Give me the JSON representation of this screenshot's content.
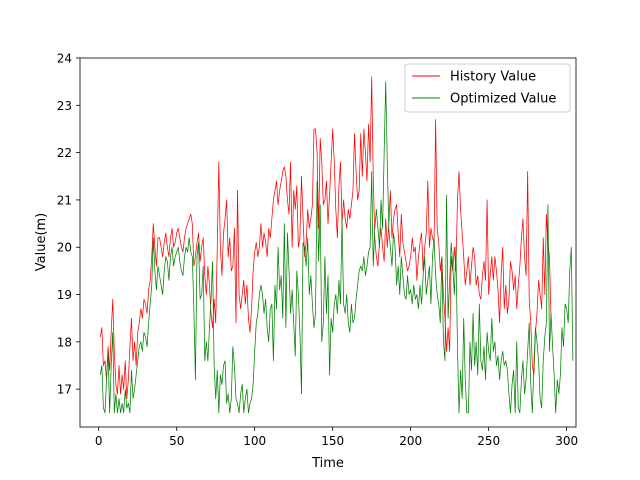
{
  "chart_data": {
    "type": "line",
    "xlabel": "Time",
    "ylabel": "Value(m)",
    "xlim": [
      -12,
      306
    ],
    "ylim": [
      16.2,
      24
    ],
    "xticks": [
      0,
      50,
      100,
      150,
      200,
      250,
      300
    ],
    "yticks": [
      17,
      18,
      19,
      20,
      21,
      22,
      23,
      24
    ],
    "grid": false,
    "legend_position": "top-right",
    "series": [
      {
        "name": "History Value",
        "color": "#ff0000",
        "values": [
          18.1,
          18.3,
          17.5,
          17.6,
          17.2,
          17.9,
          17.4,
          18.2,
          18.9,
          17.8,
          17.1,
          16.9,
          17.5,
          16.9,
          17.3,
          17.0,
          17.6,
          16.8,
          17.2,
          17.9,
          18.5,
          17.6,
          18.0,
          17.5,
          18.2,
          18.4,
          18.7,
          18.5,
          18.9,
          18.8,
          18.6,
          19.1,
          19.3,
          19.8,
          20.5,
          20.0,
          19.6,
          20.2,
          20.2,
          20.0,
          19.8,
          20.1,
          20.3,
          20.0,
          19.8,
          20.2,
          20.4,
          20.0,
          20.1,
          20.3,
          20.4,
          20.2,
          20.0,
          19.9,
          20.2,
          20.4,
          20.5,
          20.6,
          20.7,
          20.5,
          19.6,
          19.8,
          20.1,
          20.3,
          19.7,
          20.0,
          20.2,
          19.4,
          19.0,
          19.6,
          19.2,
          18.6,
          18.3,
          18.9,
          18.4,
          20.0,
          21.8,
          20.0,
          19.4,
          20.3,
          20.6,
          21.0,
          19.8,
          20.2,
          19.5,
          19.6,
          20.4,
          18.4,
          21.2,
          19.0,
          18.7,
          19.0,
          19.3,
          18.8,
          19.2,
          18.5,
          18.2,
          18.7,
          19.5,
          19.9,
          20.1,
          19.8,
          20.0,
          20.5,
          20.0,
          20.3,
          20.1,
          19.8,
          20.4,
          20.2,
          20.6,
          21.0,
          21.2,
          21.4,
          20.9,
          21.2,
          21.4,
          21.6,
          21.7,
          21.5,
          21.0,
          20.7,
          21.8,
          20.0,
          21.2,
          20.8,
          21.3,
          20.0,
          20.2,
          21.5,
          20.6,
          19.8,
          20.1,
          20.8,
          20.4,
          20.6,
          20.9,
          22.5,
          22.5,
          22.0,
          20.4,
          22.3,
          21.8,
          20.9,
          21.0,
          21.4,
          20.5,
          21.1,
          21.8,
          22.5,
          21.8,
          20.8,
          20.2,
          21.3,
          21.8,
          20.5,
          21.0,
          20.6,
          20.4,
          20.8,
          20.6,
          20.9,
          21.2,
          22.4,
          21.6,
          21.0,
          21.2,
          22.4,
          21.5,
          22.5,
          22.0,
          21.4,
          22.6,
          21.8,
          23.6,
          21.5,
          20.2,
          19.8,
          19.6,
          20.1,
          20.4,
          20.0,
          19.7,
          20.6,
          20.0,
          20.5,
          21.2,
          20.2,
          20.6,
          20.8,
          20.9,
          20.3,
          19.8,
          20.7,
          20.1,
          19.9,
          19.7,
          19.5,
          19.6,
          19.8,
          20.2,
          19.9,
          20.0,
          19.3,
          19.8,
          20.1,
          20.3,
          19.5,
          20.0,
          20.3,
          21.4,
          20.0,
          20.4,
          20.2,
          20.1,
          22.7,
          20.4,
          20.1,
          19.5,
          19.8,
          19.0,
          18.5,
          17.8,
          18.3,
          17.8,
          19.8,
          19.5,
          20.0,
          19.5,
          21.0,
          21.6,
          20.8,
          20.3,
          19.8,
          19.2,
          19.5,
          19.8,
          19.2,
          19.6,
          20.0,
          19.8,
          19.2,
          19.4,
          19.0,
          18.9,
          19.4,
          19.7,
          19.3,
          21.0,
          19.0,
          19.4,
          19.8,
          19.3,
          19.8,
          19.5,
          19.1,
          18.4,
          19.4,
          20.0,
          18.7,
          19.2,
          18.6,
          18.9,
          19.7,
          19.5,
          19.1,
          19.4,
          18.7,
          19.2,
          19.6,
          20.2,
          20.6,
          19.8,
          19.4,
          21.6,
          18.9,
          18.4,
          17.5,
          17.3,
          18.2,
          18.6,
          19.3,
          19.0,
          18.7,
          20.2,
          19.0,
          20.7,
          20.1,
          19.8,
          18.5
        ]
      },
      {
        "name": "Optimized Value",
        "color": "#008000",
        "values": [
          17.3,
          17.5,
          16.6,
          16.5,
          17.2,
          17.8,
          16.5,
          17.5,
          18.2,
          16.5,
          16.9,
          16.5,
          16.8,
          16.5,
          16.7,
          16.5,
          17.0,
          16.6,
          16.7,
          16.5,
          17.4,
          16.8,
          17.0,
          17.3,
          17.6,
          17.9,
          18.0,
          17.8,
          18.2,
          18.1,
          17.9,
          18.4,
          18.8,
          19.2,
          20.2,
          19.5,
          19.1,
          19.6,
          19.4,
          19.2,
          19.0,
          19.5,
          19.8,
          19.7,
          19.3,
          19.8,
          20.0,
          19.6,
          19.8,
          19.9,
          20.0,
          19.7,
          19.5,
          19.4,
          19.8,
          20.0,
          19.9,
          20.2,
          19.9,
          19.8,
          18.7,
          17.2,
          19.8,
          20.1,
          18.9,
          19.0,
          19.6,
          17.6,
          18.0,
          17.6,
          18.3,
          18.9,
          19.7,
          17.5,
          16.8,
          17.4,
          16.5,
          17.3,
          17.1,
          17.5,
          17.6,
          16.7,
          16.9,
          16.5,
          16.8,
          17.9,
          17.5,
          16.8,
          16.7,
          16.5,
          16.9,
          17.1,
          16.5,
          16.8,
          17.0,
          16.5,
          16.7,
          16.8,
          17.1,
          17.8,
          18.4,
          18.6,
          19.0,
          19.2,
          19.0,
          18.6,
          18.9,
          18.3,
          18.0,
          18.7,
          18.8,
          17.6,
          19.2,
          18.7,
          20.0,
          19.1,
          19.4,
          18.5,
          20.5,
          18.3,
          20.3,
          19.5,
          18.6,
          19.1,
          18.4,
          17.7,
          19.5,
          19.0,
          18.2,
          16.9,
          20.1,
          20.0,
          19.6,
          20.2,
          19.0,
          19.4,
          18.8,
          18.3,
          18.6,
          21.4,
          19.7,
          20.9,
          18.0,
          18.4,
          19.8,
          18.6,
          19.4,
          17.3,
          18.5,
          18.2,
          18.8,
          19.0,
          18.6,
          19.3,
          18.8,
          20.6,
          18.8,
          18.6,
          19.0,
          18.4,
          18.2,
          18.8,
          18.4,
          18.5,
          18.9,
          19.2,
          19.5,
          19.6,
          19.5,
          19.8,
          19.4,
          19.6,
          19.9,
          20.0,
          21.6,
          19.6,
          20.4,
          20.8,
          20.4,
          20.0,
          21.0,
          20.4,
          22.0,
          23.5,
          21.8,
          20.4,
          20.0,
          19.6,
          20.3,
          20.0,
          19.2,
          19.6,
          19.0,
          19.8,
          19.4,
          19.0,
          18.9,
          19.4,
          19.0,
          19.1,
          18.8,
          19.2,
          18.9,
          19.0,
          18.7,
          19.2,
          18.8,
          19.4,
          19.8,
          19.0,
          19.3,
          19.6,
          18.8,
          19.8,
          20.2,
          19.4,
          19.0,
          18.8,
          18.4,
          19.8,
          18.0,
          17.6,
          21.1,
          18.5,
          19.3,
          20.1,
          19.6,
          19.0,
          20.0,
          17.9,
          16.5,
          17.4,
          16.8,
          18.5,
          17.2,
          16.5,
          16.5,
          18.0,
          17.4,
          18.6,
          17.5,
          18.0,
          17.3,
          18.8,
          17.6,
          17.4,
          17.9,
          17.2,
          18.2,
          17.8,
          17.6,
          18.5,
          17.8,
          18.0,
          17.5,
          17.7,
          17.2,
          17.6,
          17.8,
          17.5,
          17.6,
          17.4,
          16.9,
          16.5,
          17.1,
          17.4,
          16.5,
          18.0,
          16.6,
          16.5,
          17.2,
          17.6,
          16.9,
          17.2,
          17.8,
          18.4,
          17.1,
          16.5,
          17.5,
          18.3,
          18.0,
          17.6,
          16.8,
          16.6,
          17.6,
          18.1,
          18.4,
          20.9,
          17.8,
          18.6,
          17.9,
          17.3,
          16.5,
          17.2,
          16.9,
          17.3,
          18.3,
          17.9,
          18.8,
          18.7,
          18.4,
          19.5,
          20.0,
          17.6
        ]
      }
    ]
  }
}
